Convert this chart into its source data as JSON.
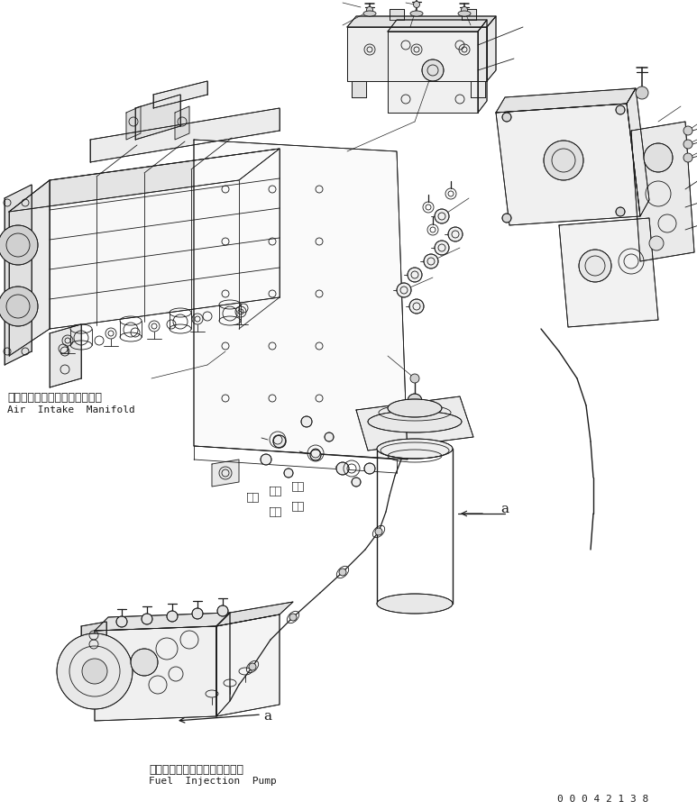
{
  "bg_color": "#ffffff",
  "fig_width": 7.73,
  "fig_height": 8.99,
  "dpi": 100,
  "label_air_intake_jp": "エアーインテークマニホールド",
  "label_air_intake_en": "Air  Intake  Manifold",
  "label_fuel_pump_jp": "フェルインジェクションポンプ",
  "label_fuel_pump_en": "Fuel  Injection  Pump",
  "label_part_number": "0 0 0 4 2 1 3 8",
  "label_a1": "a",
  "label_a2": "a",
  "lc": "#1a1a1a",
  "tc": "#1a1a1a",
  "lw": 0.6
}
